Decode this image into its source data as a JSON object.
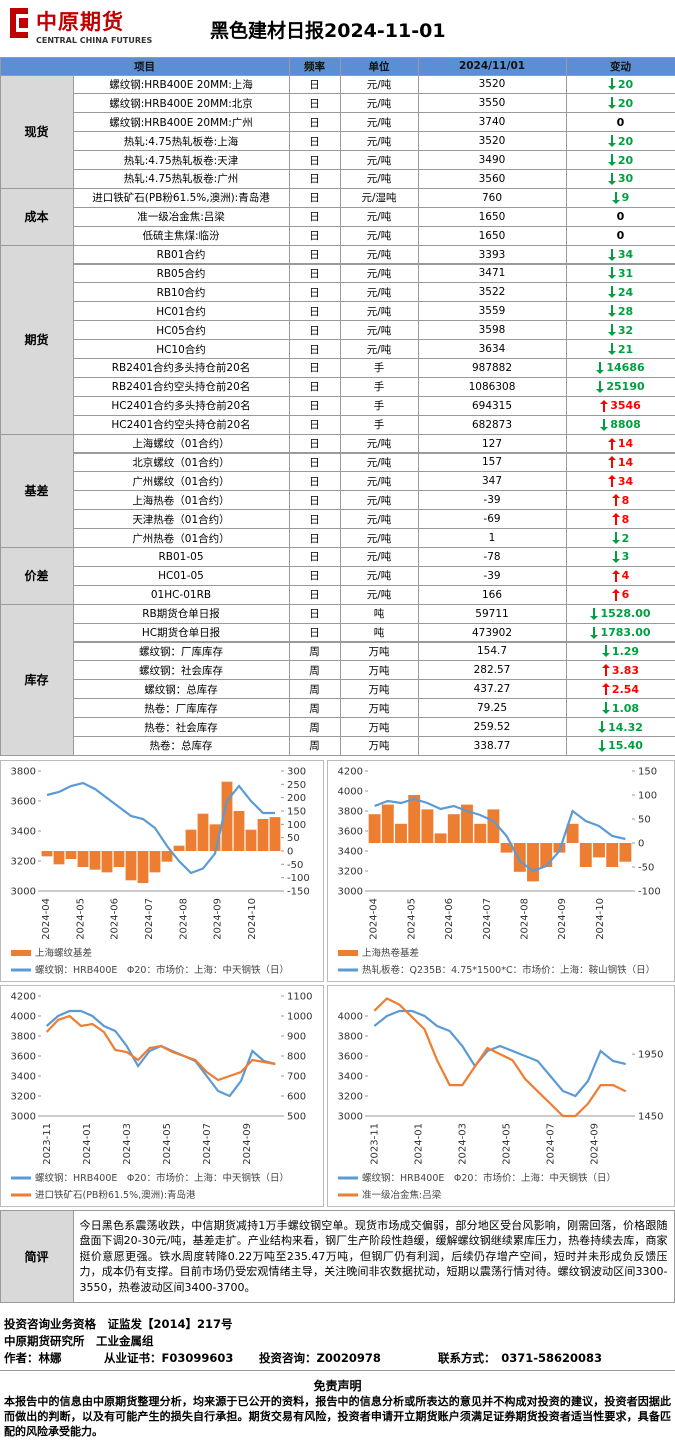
{
  "header": {
    "logo_text": "中原期货",
    "logo_subtitle": "CENTRAL CHINA FUTURES",
    "title": "黑色建材日报2024-11-01"
  },
  "table": {
    "header": [
      "项目",
      "频率",
      "单位",
      "2024/11/01",
      "变动"
    ],
    "groups": [
      {
        "name": "现货",
        "rows": [
          {
            "item": "螺纹钢:HRB400E 20MM:上海",
            "freq": "日",
            "unit": "元/吨",
            "value": "3520",
            "change": "20",
            "dir": "down"
          },
          {
            "item": "螺纹钢:HRB400E 20MM:北京",
            "freq": "日",
            "unit": "元/吨",
            "value": "3550",
            "change": "20",
            "dir": "down"
          },
          {
            "item": "螺纹钢:HRB400E 20MM:广州",
            "freq": "日",
            "unit": "元/吨",
            "value": "3740",
            "change": "0"
          },
          {
            "item": "热轧:4.75热轧板卷:上海",
            "freq": "日",
            "unit": "元/吨",
            "value": "3520",
            "change": "20",
            "dir": "down"
          },
          {
            "item": "热轧:4.75热轧板卷:天津",
            "freq": "日",
            "unit": "元/吨",
            "value": "3490",
            "change": "20",
            "dir": "down"
          },
          {
            "item": "热轧:4.75热轧板卷:广州",
            "freq": "日",
            "unit": "元/吨",
            "value": "3560",
            "change": "30",
            "dir": "down"
          }
        ]
      },
      {
        "name": "成本",
        "rows": [
          {
            "item": "进口铁矿石(PB粉61.5%,澳洲):青岛港",
            "freq": "日",
            "unit": "元/湿吨",
            "value": "760",
            "change": "9",
            "dir": "down"
          },
          {
            "item": "准一级冶金焦:吕梁",
            "freq": "日",
            "unit": "元/吨",
            "value": "1650",
            "change": "0"
          },
          {
            "item": "低硫主焦煤:临汾",
            "freq": "日",
            "unit": "元/吨",
            "value": "1650",
            "change": "0"
          }
        ]
      },
      {
        "name": "期货",
        "rows": [
          {
            "item": "RB01合约",
            "freq": "日",
            "unit": "元/吨",
            "value": "3393",
            "change": "34",
            "dir": "down"
          },
          {
            "item": "RB05合约",
            "freq": "日",
            "unit": "元/吨",
            "value": "3471",
            "change": "31",
            "dir": "down"
          },
          {
            "item": "RB10合约",
            "freq": "日",
            "unit": "元/吨",
            "value": "3522",
            "change": "24",
            "dir": "down"
          },
          {
            "item": "HC01合约",
            "freq": "日",
            "unit": "元/吨",
            "value": "3559",
            "change": "28",
            "dir": "down"
          },
          {
            "item": "HC05合约",
            "freq": "日",
            "unit": "元/吨",
            "value": "3598",
            "change": "32",
            "dir": "down"
          },
          {
            "item": "HC10合约",
            "freq": "日",
            "unit": "元/吨",
            "value": "3634",
            "change": "21",
            "dir": "down"
          },
          {
            "item": "RB2401合约多头持仓前20名",
            "freq": "日",
            "unit": "手",
            "value": "987882",
            "change": "14686",
            "dir": "down"
          },
          {
            "item": "RB2401合约空头持仓前20名",
            "freq": "日",
            "unit": "手",
            "value": "1086308",
            "change": "25190",
            "dir": "down"
          },
          {
            "item": "HC2401合约多头持仓前20名",
            "freq": "日",
            "unit": "手",
            "value": "694315",
            "change": "3546",
            "dir": "up"
          },
          {
            "item": "HC2401合约空头持仓前20名",
            "freq": "日",
            "unit": "手",
            "value": "682873",
            "change": "8808",
            "dir": "down"
          }
        ]
      },
      {
        "name": "基差",
        "rows": [
          {
            "item": "上海螺纹（01合约）",
            "freq": "日",
            "unit": "元/吨",
            "value": "127",
            "change": "14",
            "dir": "up"
          },
          {
            "item": "北京螺纹（01合约）",
            "freq": "日",
            "unit": "元/吨",
            "value": "157",
            "change": "14",
            "dir": "up"
          },
          {
            "item": "广州螺纹（01合约）",
            "freq": "日",
            "unit": "元/吨",
            "value": "347",
            "change": "34",
            "dir": "up"
          },
          {
            "item": "上海热卷（01合约）",
            "freq": "日",
            "unit": "元/吨",
            "value": "-39",
            "change": "8",
            "dir": "up"
          },
          {
            "item": "天津热卷（01合约）",
            "freq": "日",
            "unit": "元/吨",
            "value": "-69",
            "change": "8",
            "dir": "up"
          },
          {
            "item": "广州热卷（01合约）",
            "freq": "日",
            "unit": "元/吨",
            "value": "1",
            "change": "2",
            "dir": "down"
          }
        ]
      },
      {
        "name": "价差",
        "rows": [
          {
            "item": "RB01-05",
            "freq": "日",
            "unit": "元/吨",
            "value": "-78",
            "change": "3",
            "dir": "down"
          },
          {
            "item": "HC01-05",
            "freq": "日",
            "unit": "元/吨",
            "value": "-39",
            "change": "4",
            "dir": "up"
          },
          {
            "item": "01HC-01RB",
            "freq": "日",
            "unit": "元/吨",
            "value": "166",
            "change": "6",
            "dir": "up"
          }
        ]
      },
      {
        "name": "库存",
        "rows": [
          {
            "item": "RB期货仓单日报",
            "freq": "日",
            "unit": "吨",
            "value": "59711",
            "change": "1528.00",
            "dir": "down"
          },
          {
            "item": "HC期货仓单日报",
            "freq": "日",
            "unit": "吨",
            "value": "473902",
            "change": "1783.00",
            "dir": "down"
          },
          {
            "item": "螺纹钢：厂库库存",
            "freq": "周",
            "unit": "万吨",
            "value": "154.7",
            "change": "1.29",
            "dir": "down"
          },
          {
            "item": "螺纹钢：社会库存",
            "freq": "周",
            "unit": "万吨",
            "value": "282.57",
            "change": "3.83",
            "dir": "up"
          },
          {
            "item": "螺纹钢：总库存",
            "freq": "周",
            "unit": "万吨",
            "value": "437.27",
            "change": "2.54",
            "dir": "up"
          },
          {
            "item": "热卷：厂库库存",
            "freq": "周",
            "unit": "万吨",
            "value": "79.25",
            "change": "1.08",
            "dir": "down"
          },
          {
            "item": "热卷：社会库存",
            "freq": "周",
            "unit": "万吨",
            "value": "259.52",
            "change": "14.32",
            "dir": "down"
          },
          {
            "item": "热卷：总库存",
            "freq": "周",
            "unit": "万吨",
            "value": "338.77",
            "change": "15.40",
            "dir": "down"
          }
        ]
      }
    ]
  },
  "charts": [
    {
      "ylim": [
        3000,
        3800
      ],
      "yticks": [
        3000,
        3200,
        3400,
        3600,
        3800
      ],
      "y2lim": [
        -150,
        300
      ],
      "y2ticks": [
        -150,
        -100,
        -50,
        0,
        50,
        100,
        150,
        200,
        250,
        300
      ],
      "x_labels": [
        "2024-04",
        "2024-05",
        "2024-06",
        "2024-07",
        "2024-08",
        "2024-09",
        "2024-10"
      ],
      "series": [
        {
          "name": "上海螺纹基差",
          "color": "#ed7d31",
          "kind": "bar",
          "axis": "y2",
          "values": [
            -20,
            -50,
            -30,
            -60,
            -70,
            -80,
            -60,
            -110,
            -120,
            -80,
            -40,
            20,
            80,
            140,
            100,
            260,
            150,
            80,
            120,
            127
          ]
        },
        {
          "name": "螺纹钢：HRB400E　Φ20：市场价：上海：中天钢铁（日）",
          "color": "#5b9bd5",
          "kind": "line",
          "axis": "y",
          "values": [
            3640,
            3660,
            3700,
            3720,
            3680,
            3620,
            3560,
            3500,
            3480,
            3420,
            3300,
            3200,
            3120,
            3150,
            3250,
            3600,
            3700,
            3600,
            3520,
            3520
          ]
        }
      ]
    },
    {
      "ylim": [
        3000,
        4200
      ],
      "yticks": [
        3000,
        3200,
        3400,
        3600,
        3800,
        4000,
        4200
      ],
      "y2lim": [
        -100,
        150
      ],
      "y2ticks": [
        -100,
        -50,
        0,
        50,
        100,
        150
      ],
      "x_labels": [
        "2024-04",
        "2024-05",
        "2024-06",
        "2024-07",
        "2024-08",
        "2024-09",
        "2024-10"
      ],
      "series": [
        {
          "name": "上海热卷基差",
          "color": "#ed7d31",
          "kind": "bar",
          "axis": "y2",
          "values": [
            60,
            80,
            40,
            100,
            70,
            20,
            60,
            80,
            40,
            70,
            -20,
            -60,
            -80,
            -50,
            -20,
            40,
            -50,
            -30,
            -50,
            -39
          ]
        },
        {
          "name": "热轧板卷：Q235B：4.75*1500*C：市场价：上海：鞍山钢铁（日）",
          "color": "#5b9bd5",
          "kind": "line",
          "axis": "y",
          "values": [
            3850,
            3900,
            3880,
            3920,
            3880,
            3820,
            3850,
            3800,
            3760,
            3700,
            3550,
            3300,
            3200,
            3250,
            3400,
            3800,
            3700,
            3650,
            3550,
            3520
          ]
        }
      ]
    },
    {
      "ylim": [
        3000,
        4200
      ],
      "yticks": [
        3000,
        3200,
        3400,
        3600,
        3800,
        4000,
        4200
      ],
      "y2lim": [
        500,
        1100
      ],
      "y2ticks": [
        500,
        600,
        700,
        800,
        900,
        1000,
        1100
      ],
      "x_labels": [
        "2023-11",
        "2024-01",
        "2024-03",
        "2024-05",
        "2024-07",
        "2024-09"
      ],
      "series": [
        {
          "name": "螺纹钢：HRB400E　Φ20：市场价：上海：中天钢铁（日）",
          "color": "#5b9bd5",
          "kind": "line",
          "axis": "y",
          "values": [
            3900,
            4000,
            4050,
            4050,
            4000,
            3900,
            3850,
            3700,
            3500,
            3650,
            3700,
            3650,
            3600,
            3550,
            3400,
            3250,
            3200,
            3350,
            3650,
            3550,
            3520
          ]
        },
        {
          "name": "进口铁矿石(PB粉61.5%,澳洲):青岛港",
          "color": "#ed7d31",
          "kind": "line",
          "axis": "y2",
          "values": [
            920,
            980,
            1000,
            950,
            960,
            920,
            830,
            820,
            780,
            840,
            850,
            820,
            800,
            780,
            720,
            680,
            700,
            720,
            780,
            770,
            760
          ]
        }
      ]
    },
    {
      "ylim": [
        3000,
        4200
      ],
      "yticks": [
        3000,
        3200,
        3400,
        3600,
        3800,
        4000
      ],
      "y2lim": [
        1450,
        2420
      ],
      "y2ticks": [
        1450,
        1950
      ],
      "x_labels": [
        "2023-11",
        "2024-01",
        "2024-03",
        "2024-05",
        "2024-07",
        "2024-09"
      ],
      "series": [
        {
          "name": "螺纹钢：HRB400E　Φ20：市场价：上海：中天钢铁（日）",
          "color": "#5b9bd5",
          "kind": "line",
          "axis": "y",
          "values": [
            3900,
            4000,
            4050,
            4050,
            4000,
            3900,
            3850,
            3700,
            3500,
            3650,
            3700,
            3650,
            3600,
            3550,
            3400,
            3250,
            3200,
            3350,
            3650,
            3550,
            3520
          ]
        },
        {
          "name": "准一级冶金焦:吕梁",
          "color": "#ed7d31",
          "kind": "line",
          "axis": "y2",
          "values": [
            2300,
            2400,
            2350,
            2250,
            2150,
            1900,
            1700,
            1700,
            1850,
            2000,
            1950,
            1900,
            1750,
            1650,
            1550,
            1450,
            1450,
            1550,
            1700,
            1700,
            1650
          ]
        }
      ]
    }
  ],
  "comment": {
    "label": "简评",
    "text": "今日黑色系震荡收跌，中信期货减持1万手螺纹钢空单。现货市场成交偏弱，部分地区受台风影响，刚需回落，价格跟随盘面下调20-30元/吨，基差走扩。产业结构来看，钢厂生产阶段性趋缓，缓解螺纹钢继续累库压力，热卷持续去库，商家挺价意愿更强。铁水周度转降0.22万吨至235.47万吨，但钢厂仍有利润，后续仍存增产空间，短时并未形成负反馈压力，成本仍有支撑。目前市场仍受宏观情绪主导，关注晚间非农数据扰动，短期以震荡行情对待。螺纹钢波动区间3300-3550，热卷波动区间3400-3700。"
  },
  "footer": {
    "qualification": "投资咨询业务资格　证监发【2014】217号",
    "institute": "中原期货研究所　工业金属组",
    "author": "作者：林娜",
    "cert": "从业证书：F03099603",
    "consult": "投资咨询：Z0020978",
    "contact": "联系方式：　0371-58620083",
    "disclaimer_title": "免责声明",
    "disclaimer": "本报告中的信息由中原期货整理分析，均来源于已公开的资料，报告中的信息分析或所表达的意见并不构成对投资的建议，投资者因据此而做出的判断，以及有可能产生的损失自行承担。期货交易有风险，投资者申请开立期货账户须满足证券期货投资者适当性要求，具备匹配的风险承受能力。"
  }
}
